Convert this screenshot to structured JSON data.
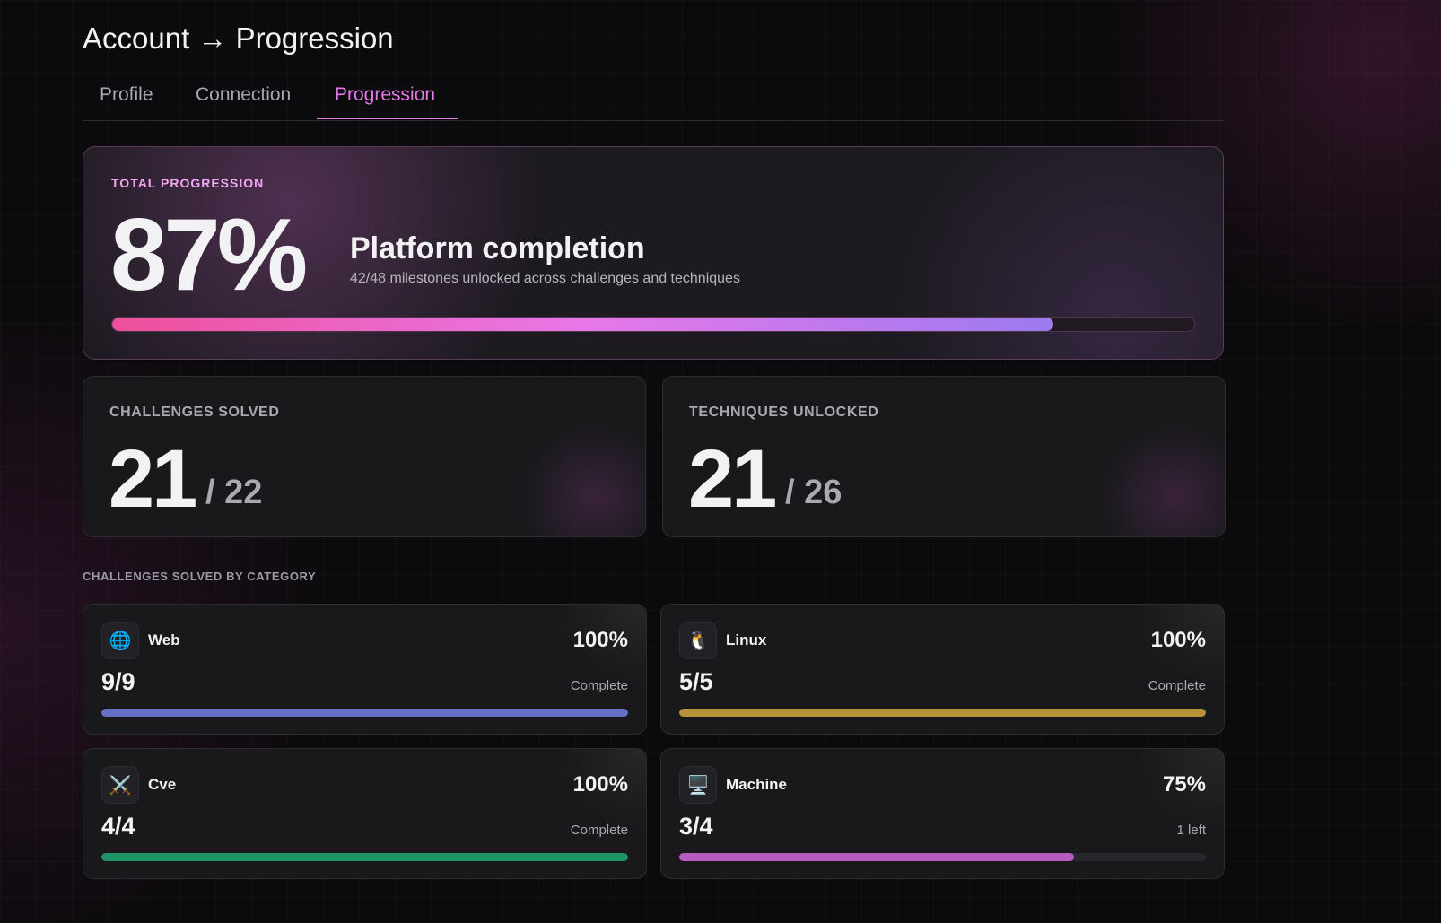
{
  "header": {
    "title": "Account → Progression"
  },
  "tabs": [
    {
      "label": "Profile",
      "active": false
    },
    {
      "label": "Connection",
      "active": false
    },
    {
      "label": "Progression",
      "active": true
    }
  ],
  "total": {
    "label": "TOTAL PROGRESSION",
    "value": 87,
    "value_label": "87%",
    "headline": "Platform completion",
    "subtitle": "42/48 milestones unlocked across challenges and techniques"
  },
  "stats": [
    {
      "label": "CHALLENGES SOLVED",
      "count": 21,
      "total_label": "/ 22"
    },
    {
      "label": "TECHNIQUES UNLOCKED",
      "count": 21,
      "total_label": "/ 26"
    }
  ],
  "section_label": "CHALLENGES SOLVED BY CATEGORY",
  "categories": [
    {
      "icon": "🌐",
      "name": "Web",
      "value": 100,
      "value_label": "100%",
      "count_label": "9/9",
      "status": "Complete",
      "color": "#6670c4"
    },
    {
      "icon": "🐧",
      "name": "Linux",
      "value": 100,
      "value_label": "100%",
      "count_label": "5/5",
      "status": "Complete",
      "color": "#b8923a"
    },
    {
      "icon": "⚔️",
      "name": "Cve",
      "value": 100,
      "value_label": "100%",
      "count_label": "4/4",
      "status": "Complete",
      "color": "#1f9466"
    },
    {
      "icon": "🖥️",
      "name": "Machine",
      "value": 75,
      "value_label": "75%",
      "count_label": "3/4",
      "status": "1 left",
      "color": "#b65bc0"
    }
  ]
}
